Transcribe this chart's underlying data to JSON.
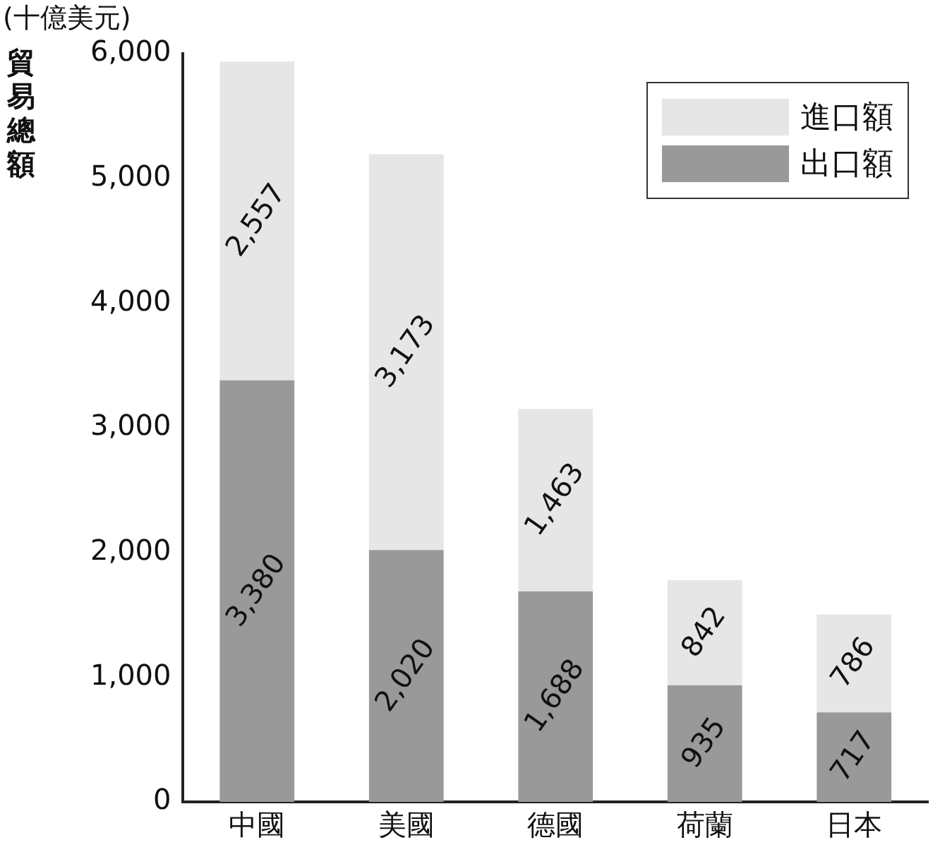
{
  "chart_data": {
    "type": "bar",
    "stacked": true,
    "ylabel": "貿易總額",
    "annotations": [
      "(十億美元)"
    ],
    "categories": [
      "中國",
      "美國",
      "德國",
      "荷蘭",
      "日本"
    ],
    "series": [
      {
        "name": "出口額",
        "color": "#999999",
        "values": [
          3380,
          2020,
          1688,
          935,
          717
        ],
        "value_labels": [
          "3,380",
          "2,020",
          "1,688",
          "935",
          "717"
        ]
      },
      {
        "name": "進口額",
        "color": "#e6e6e6",
        "values": [
          2557,
          3173,
          1463,
          842,
          786
        ],
        "value_labels": [
          "2,557",
          "3,173",
          "1,463",
          "842",
          "786"
        ]
      }
    ],
    "ylim": [
      0,
      6000
    ],
    "yticks": [
      0,
      {
        "value": 1000,
        "label": "1,000"
      },
      {
        "value": 2000,
        "label": "2,000"
      },
      {
        "value": 3000,
        "label": "3,000"
      },
      {
        "value": 4000,
        "label": "4,000"
      },
      {
        "value": 5000,
        "label": "5,000"
      },
      {
        "value": 6000,
        "label": "6,000"
      }
    ],
    "grid": false,
    "legend": "top right"
  }
}
